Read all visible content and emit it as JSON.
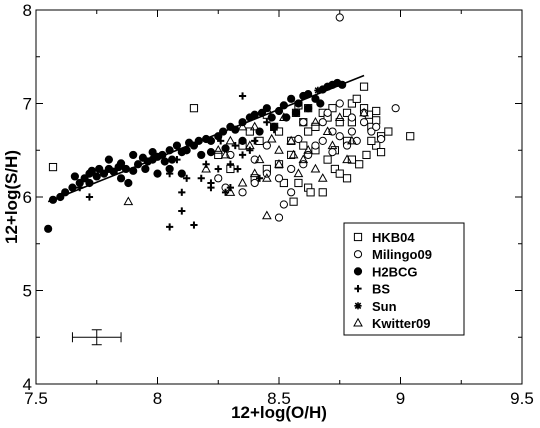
{
  "chart_data": {
    "type": "scatter",
    "title": "",
    "xlabel": "12+log(O/H)",
    "ylabel": "12+log(S/H)",
    "xlim": [
      7.5,
      9.5
    ],
    "ylim": [
      4,
      8
    ],
    "xticks": [
      "7.5",
      "8",
      "8.5",
      "9",
      "9.5"
    ],
    "yticks": [
      "4",
      "5",
      "6",
      "7",
      "8"
    ],
    "legend_position": "bottom-right",
    "series": [
      {
        "name": "HKB04",
        "marker": "square-open",
        "points": [
          [
            7.57,
            6.32
          ],
          [
            8.15,
            6.95
          ],
          [
            8.45,
            6.88
          ],
          [
            8.48,
            6.75
          ],
          [
            8.5,
            6.7
          ],
          [
            8.55,
            6.6
          ],
          [
            8.58,
            6.98
          ],
          [
            8.6,
            6.8
          ],
          [
            8.62,
            6.7
          ],
          [
            8.65,
            6.75
          ],
          [
            8.68,
            6.9
          ],
          [
            8.7,
            6.85
          ],
          [
            8.72,
            6.95
          ],
          [
            8.75,
            6.8
          ],
          [
            8.78,
            6.9
          ],
          [
            8.8,
            7.0
          ],
          [
            8.82,
            7.05
          ],
          [
            8.85,
            7.18
          ],
          [
            8.85,
            6.95
          ],
          [
            8.87,
            6.88
          ],
          [
            8.88,
            6.75
          ],
          [
            8.9,
            6.82
          ],
          [
            8.9,
            6.55
          ],
          [
            8.92,
            6.65
          ],
          [
            8.6,
            6.55
          ],
          [
            8.65,
            6.5
          ],
          [
            8.7,
            6.4
          ],
          [
            8.73,
            6.3
          ],
          [
            8.78,
            6.2
          ],
          [
            8.8,
            6.4
          ],
          [
            8.55,
            6.45
          ],
          [
            8.5,
            6.35
          ],
          [
            8.45,
            6.3
          ],
          [
            8.4,
            6.2
          ],
          [
            8.35,
            6.55
          ],
          [
            8.3,
            6.3
          ],
          [
            8.25,
            6.45
          ],
          [
            8.58,
            6.15
          ],
          [
            8.62,
            6.1
          ],
          [
            8.68,
            6.05
          ],
          [
            8.75,
            6.25
          ],
          [
            8.83,
            6.35
          ],
          [
            8.88,
            6.6
          ],
          [
            8.95,
            6.7
          ],
          [
            9.04,
            6.65
          ],
          [
            8.92,
            6.48
          ],
          [
            8.86,
            6.45
          ],
          [
            8.78,
            6.6
          ],
          [
            8.42,
            6.6
          ],
          [
            8.52,
            6.15
          ],
          [
            8.56,
            5.95
          ],
          [
            8.63,
            6.05
          ],
          [
            8.73,
            6.5
          ],
          [
            8.8,
            6.8
          ],
          [
            8.9,
            6.92
          ],
          [
            8.57,
            6.9
          ],
          [
            8.38,
            6.7
          ],
          [
            8.62,
            6.95
          ]
        ]
      },
      {
        "name": "Milingo09",
        "marker": "circle-open",
        "points": [
          [
            8.75,
            7.92
          ],
          [
            8.98,
            6.95
          ],
          [
            8.85,
            6.9
          ],
          [
            8.88,
            6.7
          ],
          [
            8.9,
            6.75
          ],
          [
            8.82,
            6.6
          ],
          [
            8.78,
            6.55
          ],
          [
            8.75,
            6.65
          ],
          [
            8.72,
            6.7
          ],
          [
            8.68,
            6.6
          ],
          [
            8.65,
            6.55
          ],
          [
            8.6,
            6.35
          ],
          [
            8.55,
            6.3
          ],
          [
            8.5,
            6.2
          ],
          [
            8.45,
            6.25
          ],
          [
            8.4,
            6.4
          ],
          [
            8.35,
            6.05
          ],
          [
            8.3,
            6.45
          ],
          [
            8.28,
            6.1
          ],
          [
            8.25,
            6.2
          ],
          [
            8.55,
            6.05
          ],
          [
            8.52,
            5.92
          ],
          [
            8.5,
            5.78
          ],
          [
            8.6,
            6.8
          ],
          [
            8.7,
            6.9
          ],
          [
            8.8,
            6.85
          ],
          [
            8.85,
            6.8
          ],
          [
            8.92,
            6.62
          ],
          [
            8.62,
            6.45
          ],
          [
            8.45,
            6.55
          ],
          [
            8.8,
            6.7
          ],
          [
            8.75,
            7.0
          ],
          [
            8.68,
            6.8
          ],
          [
            8.58,
            6.62
          ],
          [
            8.4,
            6.15
          ],
          [
            8.72,
            6.48
          ]
        ]
      },
      {
        "name": "H2BCG",
        "marker": "circle-filled",
        "points": [
          [
            7.55,
            5.66
          ],
          [
            7.57,
            5.97
          ],
          [
            7.6,
            6.0
          ],
          [
            7.62,
            6.05
          ],
          [
            7.65,
            6.1
          ],
          [
            7.66,
            6.22
          ],
          [
            7.68,
            6.15
          ],
          [
            7.7,
            6.2
          ],
          [
            7.72,
            6.25
          ],
          [
            7.73,
            6.28
          ],
          [
            7.75,
            6.22
          ],
          [
            7.76,
            6.3
          ],
          [
            7.78,
            6.25
          ],
          [
            7.8,
            6.3
          ],
          [
            7.82,
            6.27
          ],
          [
            7.84,
            6.32
          ],
          [
            7.85,
            6.2
          ],
          [
            7.87,
            6.3
          ],
          [
            7.88,
            6.15
          ],
          [
            7.9,
            6.28
          ],
          [
            7.92,
            6.35
          ],
          [
            7.94,
            6.42
          ],
          [
            7.96,
            6.38
          ],
          [
            7.98,
            6.4
          ],
          [
            8.0,
            6.43
          ],
          [
            8.02,
            6.45
          ],
          [
            8.03,
            6.38
          ],
          [
            8.05,
            6.5
          ],
          [
            8.06,
            6.4
          ],
          [
            8.08,
            6.55
          ],
          [
            8.1,
            6.48
          ],
          [
            8.12,
            6.5
          ],
          [
            8.13,
            6.58
          ],
          [
            8.15,
            6.55
          ],
          [
            8.17,
            6.6
          ],
          [
            8.2,
            6.62
          ],
          [
            8.22,
            6.6
          ],
          [
            8.25,
            6.65
          ],
          [
            8.27,
            6.7
          ],
          [
            8.3,
            6.75
          ],
          [
            8.32,
            6.72
          ],
          [
            8.35,
            6.8
          ],
          [
            8.38,
            6.85
          ],
          [
            8.4,
            6.88
          ],
          [
            8.43,
            6.9
          ],
          [
            8.45,
            6.95
          ],
          [
            8.47,
            6.85
          ],
          [
            8.5,
            6.92
          ],
          [
            8.52,
            6.98
          ],
          [
            8.55,
            7.05
          ],
          [
            8.58,
            7.0
          ],
          [
            8.6,
            7.08
          ],
          [
            8.62,
            7.1
          ],
          [
            8.65,
            7.05
          ],
          [
            8.68,
            7.15
          ],
          [
            8.7,
            7.18
          ],
          [
            8.72,
            7.2
          ],
          [
            8.74,
            7.22
          ],
          [
            8.76,
            7.2
          ],
          [
            7.8,
            6.4
          ],
          [
            7.95,
            6.3
          ],
          [
            8.0,
            6.25
          ],
          [
            8.05,
            6.3
          ],
          [
            8.1,
            6.25
          ],
          [
            8.18,
            6.45
          ],
          [
            8.22,
            6.48
          ],
          [
            8.28,
            6.52
          ],
          [
            8.35,
            6.6
          ],
          [
            8.42,
            6.7
          ],
          [
            8.48,
            6.75
          ],
          [
            8.53,
            6.85
          ],
          [
            8.57,
            6.9
          ],
          [
            8.62,
            6.95
          ],
          [
            8.67,
            7.0
          ],
          [
            7.72,
            6.15
          ],
          [
            7.9,
            6.45
          ],
          [
            7.85,
            6.36
          ],
          [
            7.98,
            6.48
          ]
        ]
      },
      {
        "name": "BS",
        "marker": "plus",
        "points": [
          [
            8.05,
            5.68
          ],
          [
            8.15,
            5.7
          ],
          [
            8.1,
            5.85
          ],
          [
            8.22,
            6.1
          ],
          [
            8.28,
            6.05
          ],
          [
            8.3,
            6.1
          ],
          [
            8.1,
            6.05
          ],
          [
            8.18,
            6.2
          ],
          [
            8.2,
            6.35
          ],
          [
            8.25,
            6.3
          ],
          [
            8.35,
            6.45
          ],
          [
            8.32,
            6.55
          ],
          [
            8.38,
            6.5
          ],
          [
            8.4,
            6.6
          ],
          [
            8.35,
            7.08
          ],
          [
            8.45,
            6.8
          ],
          [
            8.48,
            6.72
          ],
          [
            8.3,
            6.35
          ],
          [
            8.22,
            6.15
          ],
          [
            8.12,
            6.2
          ],
          [
            7.68,
            6.1
          ],
          [
            7.72,
            6.0
          ],
          [
            8.26,
            6.6
          ],
          [
            8.05,
            6.25
          ],
          [
            8.08,
            6.4
          ],
          [
            8.42,
            6.2
          ],
          [
            8.33,
            6.3
          ]
        ]
      },
      {
        "name": "Sun",
        "marker": "asterisk",
        "points": [
          [
            8.66,
            7.14
          ]
        ]
      },
      {
        "name": "Kwitter09",
        "marker": "triangle-open",
        "points": [
          [
            7.88,
            5.95
          ],
          [
            8.3,
            6.05
          ],
          [
            8.35,
            6.15
          ],
          [
            8.4,
            6.25
          ],
          [
            8.45,
            6.2
          ],
          [
            8.5,
            6.5
          ],
          [
            8.55,
            6.6
          ],
          [
            8.6,
            6.4
          ],
          [
            8.65,
            6.3
          ],
          [
            8.7,
            6.7
          ],
          [
            8.75,
            6.85
          ],
          [
            8.8,
            6.6
          ],
          [
            8.85,
            6.9
          ],
          [
            8.38,
            6.55
          ],
          [
            8.42,
            6.4
          ],
          [
            8.3,
            6.6
          ],
          [
            8.25,
            6.5
          ],
          [
            8.35,
            6.75
          ],
          [
            8.45,
            5.8
          ],
          [
            8.58,
            6.25
          ],
          [
            8.62,
            6.5
          ],
          [
            8.68,
            6.2
          ],
          [
            8.72,
            6.55
          ],
          [
            8.78,
            6.4
          ],
          [
            8.4,
            6.75
          ],
          [
            8.52,
            6.85
          ],
          [
            8.65,
            6.8
          ],
          [
            8.2,
            6.3
          ],
          [
            8.28,
            6.45
          ],
          [
            8.5,
            6.35
          ],
          [
            8.56,
            6.45
          ],
          [
            8.47,
            6.62
          ]
        ]
      }
    ],
    "fit_line": {
      "from": [
        7.55,
        5.95
      ],
      "to": [
        8.85,
        7.3
      ]
    },
    "error_bar": {
      "x": 7.75,
      "y": 4.5,
      "xerr": 0.1,
      "yerr": 0.08
    }
  }
}
